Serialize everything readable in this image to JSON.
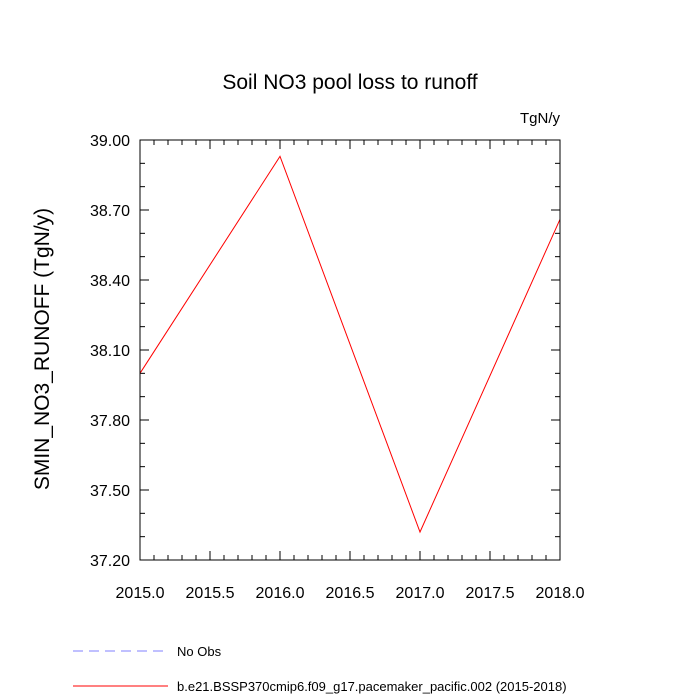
{
  "chart_data": {
    "type": "line",
    "title": "Soil NO3 pool loss to runoff",
    "units": "TgN/y",
    "ylabel": "SMIN_NO3_RUNOFF  (TgN/y)",
    "xlabel": "",
    "xlim": [
      2015.0,
      2018.0
    ],
    "ylim": [
      37.2,
      39.0
    ],
    "x_ticks": [
      "2015.0",
      "2015.5",
      "2016.0",
      "2016.5",
      "2017.0",
      "2017.5",
      "2018.0"
    ],
    "x_tick_values": [
      2015.0,
      2015.5,
      2016.0,
      2016.5,
      2017.0,
      2017.5,
      2018.0
    ],
    "y_ticks": [
      "37.20",
      "37.50",
      "37.80",
      "38.10",
      "38.40",
      "38.70",
      "39.00"
    ],
    "y_tick_values": [
      37.2,
      37.5,
      37.8,
      38.1,
      38.4,
      38.7,
      39.0
    ],
    "grid": false,
    "legend_position": "bottom",
    "series": [
      {
        "name": "b.e21.BSSP370cmip6.f09_g17.pacemaker_pacific.002 (2015-2018)",
        "color": "#ff0000",
        "style": "solid",
        "x": [
          2015,
          2016,
          2017,
          2018
        ],
        "values": [
          38.0,
          38.93,
          37.32,
          38.66
        ]
      }
    ],
    "legend": [
      {
        "label": "No Obs",
        "color": "#8080ff",
        "style": "dashed"
      },
      {
        "label": "b.e21.BSSP370cmip6.f09_g17.pacemaker_pacific.002 (2015-2018)",
        "color": "#ff0000",
        "style": "solid"
      }
    ]
  }
}
